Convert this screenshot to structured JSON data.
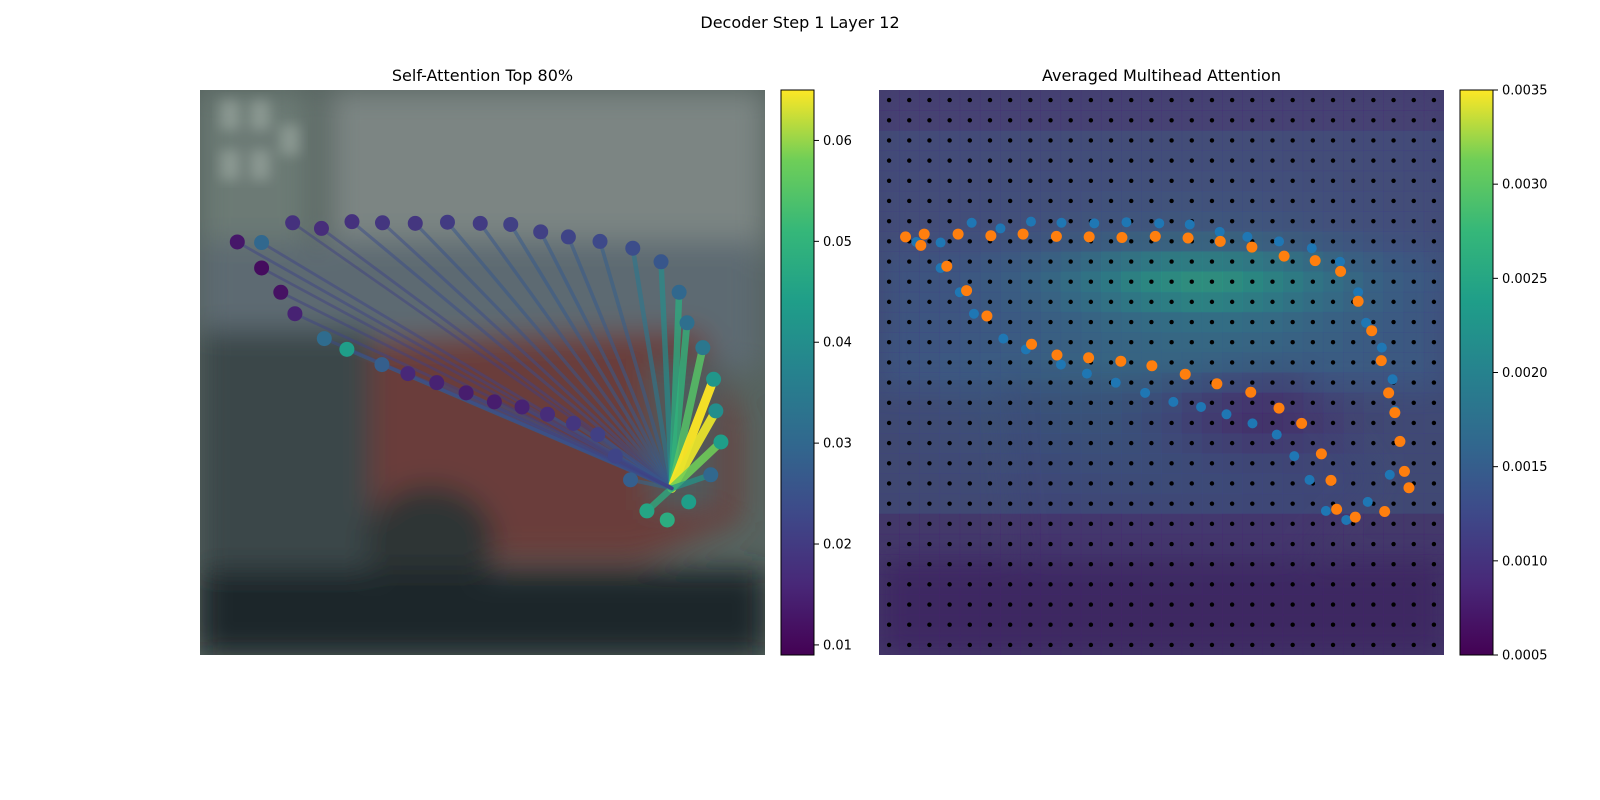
{
  "suptitle": "Decoder Step 1 Layer 12",
  "left_panel": {
    "title": "Self-Attention Top 80%",
    "colorbar_ticks": [
      "0.01",
      "0.02",
      "0.03",
      "0.04",
      "0.05",
      "0.06"
    ]
  },
  "right_panel": {
    "title": "Averaged Multihead Attention",
    "colorbar_ticks": [
      "0.0005",
      "0.0010",
      "0.0015",
      "0.0020",
      "0.0025",
      "0.0030",
      "0.0035"
    ]
  },
  "colors": {
    "point_blue": "#1f77b4",
    "point_orange": "#ff7f0e",
    "grid_dot": "#000000"
  },
  "chart_data": [
    {
      "type": "scatter",
      "title": "Self-Attention Top 80%",
      "colormap": "viridis",
      "clim": [
        0.009,
        0.065
      ],
      "xlim": [
        0,
        100
      ],
      "ylim": [
        100,
        0
      ],
      "query_point": [
        83.5,
        70.5
      ],
      "points": [
        [
          10.9,
          27.0,
          0.03
        ],
        [
          16.4,
          23.5,
          0.018
        ],
        [
          21.5,
          24.5,
          0.017
        ],
        [
          26.9,
          23.3,
          0.018
        ],
        [
          32.3,
          23.5,
          0.019
        ],
        [
          38.1,
          23.6,
          0.019
        ],
        [
          43.8,
          23.4,
          0.02
        ],
        [
          49.6,
          23.6,
          0.02
        ],
        [
          55.0,
          23.8,
          0.021
        ],
        [
          60.3,
          25.1,
          0.021
        ],
        [
          65.2,
          26.0,
          0.022
        ],
        [
          70.8,
          26.8,
          0.023
        ],
        [
          76.6,
          28.0,
          0.024
        ],
        [
          81.6,
          30.4,
          0.026
        ],
        [
          84.8,
          35.8,
          0.03
        ],
        [
          86.2,
          41.2,
          0.032
        ],
        [
          89.0,
          45.6,
          0.034
        ],
        [
          90.9,
          51.2,
          0.042
        ],
        [
          91.3,
          56.8,
          0.04
        ],
        [
          92.2,
          62.3,
          0.044
        ],
        [
          90.4,
          68.1,
          0.03
        ],
        [
          86.5,
          72.9,
          0.044
        ],
        [
          82.7,
          76.1,
          0.048
        ],
        [
          79.1,
          74.5,
          0.046
        ],
        [
          76.2,
          69.0,
          0.028
        ],
        [
          73.5,
          64.8,
          0.022
        ],
        [
          70.4,
          61.0,
          0.021
        ],
        [
          66.1,
          59.0,
          0.019
        ],
        [
          61.5,
          57.4,
          0.017
        ],
        [
          57.0,
          56.1,
          0.015
        ],
        [
          52.1,
          55.2,
          0.014
        ],
        [
          47.1,
          53.6,
          0.014
        ],
        [
          41.9,
          51.8,
          0.015
        ],
        [
          36.8,
          50.2,
          0.016
        ],
        [
          32.2,
          48.6,
          0.028
        ],
        [
          26.0,
          45.9,
          0.044
        ],
        [
          22.0,
          44.0,
          0.031
        ],
        [
          16.8,
          39.6,
          0.015
        ],
        [
          14.3,
          35.8,
          0.012
        ],
        [
          10.9,
          31.5,
          0.011
        ],
        [
          6.6,
          26.9,
          0.013
        ]
      ],
      "edges": [
        [
          0,
          0.022
        ],
        [
          1,
          0.021
        ],
        [
          2,
          0.022
        ],
        [
          3,
          0.024
        ],
        [
          4,
          0.024
        ],
        [
          5,
          0.025
        ],
        [
          6,
          0.026
        ],
        [
          7,
          0.026
        ],
        [
          8,
          0.027
        ],
        [
          9,
          0.027
        ],
        [
          10,
          0.027
        ],
        [
          11,
          0.028
        ],
        [
          12,
          0.034
        ],
        [
          13,
          0.04
        ],
        [
          14,
          0.048
        ],
        [
          15,
          0.05
        ],
        [
          16,
          0.055
        ],
        [
          17,
          0.065
        ],
        [
          18,
          0.064
        ],
        [
          19,
          0.058
        ],
        [
          20,
          0.042
        ],
        [
          23,
          0.048
        ],
        [
          24,
          0.03
        ],
        [
          25,
          0.028
        ],
        [
          26,
          0.027
        ],
        [
          27,
          0.026
        ],
        [
          28,
          0.026
        ],
        [
          29,
          0.025
        ],
        [
          30,
          0.025
        ],
        [
          31,
          0.025
        ],
        [
          32,
          0.024
        ],
        [
          33,
          0.024
        ],
        [
          34,
          0.024
        ],
        [
          35,
          0.028
        ],
        [
          36,
          0.024
        ],
        [
          37,
          0.022
        ],
        [
          38,
          0.021
        ],
        [
          39,
          0.021
        ],
        [
          40,
          0.022
        ]
      ]
    },
    {
      "type": "heatmap",
      "title": "Averaged Multihead Attention",
      "colormap": "viridis",
      "clim": [
        0.0005,
        0.0035
      ],
      "grid_size": 28,
      "hot_blobs": [
        [
          15.5,
          9.0,
          6.5,
          1.6,
          0.0023
        ],
        [
          12.0,
          10.5,
          9.0,
          3.5,
          0.0009
        ],
        [
          18.0,
          15.5,
          5.0,
          2.0,
          0.0005
        ]
      ],
      "blue_points": [
        [
          10.9,
          27.0
        ],
        [
          16.4,
          23.5
        ],
        [
          21.5,
          24.5
        ],
        [
          26.9,
          23.3
        ],
        [
          32.3,
          23.5
        ],
        [
          38.1,
          23.6
        ],
        [
          43.8,
          23.4
        ],
        [
          49.6,
          23.6
        ],
        [
          55.0,
          23.8
        ],
        [
          60.3,
          25.1
        ],
        [
          65.2,
          26.0
        ],
        [
          70.8,
          26.8
        ],
        [
          76.6,
          28.0
        ],
        [
          81.6,
          30.4
        ],
        [
          84.8,
          35.8
        ],
        [
          86.2,
          41.2
        ],
        [
          89.0,
          45.6
        ],
        [
          90.9,
          51.2
        ],
        [
          91.3,
          56.8
        ],
        [
          92.2,
          62.3
        ],
        [
          90.4,
          68.1
        ],
        [
          86.5,
          72.9
        ],
        [
          82.7,
          76.1
        ],
        [
          79.1,
          74.5
        ],
        [
          76.2,
          69.0
        ],
        [
          73.5,
          64.8
        ],
        [
          70.4,
          61.0
        ],
        [
          66.1,
          59.0
        ],
        [
          61.5,
          57.4
        ],
        [
          57.0,
          56.1
        ],
        [
          52.1,
          55.2
        ],
        [
          47.1,
          53.6
        ],
        [
          41.9,
          51.8
        ],
        [
          36.8,
          50.2
        ],
        [
          32.2,
          48.6
        ],
        [
          26.0,
          45.9
        ],
        [
          22.0,
          44.0
        ],
        [
          16.8,
          39.6
        ],
        [
          14.3,
          35.8
        ],
        [
          10.9,
          31.5
        ],
        [
          6.6,
          26.9
        ]
      ],
      "orange_points": [
        [
          8.0,
          25.5
        ],
        [
          14.0,
          25.5
        ],
        [
          19.8,
          25.8
        ],
        [
          25.5,
          25.5
        ],
        [
          31.4,
          25.9
        ],
        [
          37.2,
          26.0
        ],
        [
          43.0,
          26.1
        ],
        [
          48.9,
          25.9
        ],
        [
          54.7,
          26.2
        ],
        [
          60.4,
          26.8
        ],
        [
          66.0,
          27.8
        ],
        [
          71.7,
          29.4
        ],
        [
          77.2,
          30.2
        ],
        [
          81.7,
          32.1
        ],
        [
          84.8,
          37.4
        ],
        [
          87.2,
          42.6
        ],
        [
          88.9,
          47.9
        ],
        [
          90.2,
          53.6
        ],
        [
          91.3,
          57.1
        ],
        [
          92.2,
          62.2
        ],
        [
          93.0,
          67.5
        ],
        [
          93.8,
          70.4
        ],
        [
          89.5,
          74.6
        ],
        [
          84.3,
          75.6
        ],
        [
          81.0,
          74.2
        ],
        [
          80.0,
          69.1
        ],
        [
          78.3,
          64.4
        ],
        [
          74.8,
          59.0
        ],
        [
          70.8,
          56.3
        ],
        [
          65.8,
          53.5
        ],
        [
          59.8,
          52.0
        ],
        [
          54.2,
          50.3
        ],
        [
          48.3,
          48.8
        ],
        [
          42.8,
          48.0
        ],
        [
          37.1,
          47.4
        ],
        [
          31.5,
          46.9
        ],
        [
          27.0,
          45.0
        ],
        [
          19.1,
          40.0
        ],
        [
          15.5,
          35.5
        ],
        [
          12.0,
          31.2
        ],
        [
          4.7,
          26.0
        ],
        [
          7.4,
          27.5
        ]
      ]
    }
  ]
}
